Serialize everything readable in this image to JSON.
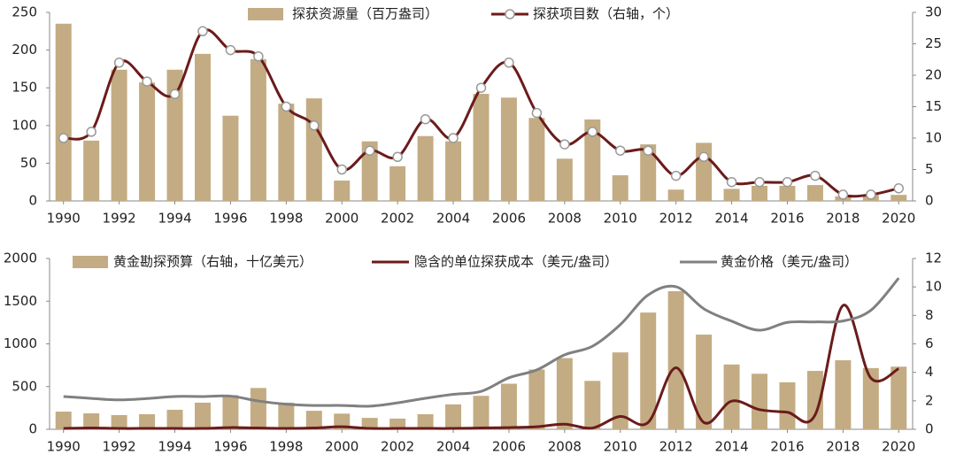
{
  "chart_data": [
    {
      "type": "combo",
      "x": [
        1990,
        1991,
        1992,
        1993,
        1994,
        1995,
        1996,
        1997,
        1998,
        1999,
        2000,
        2001,
        2002,
        2003,
        2004,
        2005,
        2006,
        2007,
        2008,
        2009,
        2010,
        2011,
        2012,
        2013,
        2014,
        2015,
        2016,
        2017,
        2018,
        2019,
        2020
      ],
      "xlim": [
        1989.5,
        2020.5
      ],
      "xticks": [
        1990,
        1992,
        1994,
        1996,
        1998,
        2000,
        2002,
        2004,
        2006,
        2008,
        2010,
        2012,
        2014,
        2016,
        2018,
        2020
      ],
      "ylim": [
        0,
        250
      ],
      "yticks": [
        0,
        50,
        100,
        150,
        200,
        250
      ],
      "y2lim": [
        0,
        30
      ],
      "y2ticks": [
        0,
        5,
        10,
        15,
        20,
        25,
        30
      ],
      "series": [
        {
          "name": "探获资源量（百万盎司）",
          "kind": "bar",
          "color": "#c3ac83",
          "values": [
            235,
            80,
            174,
            157,
            174,
            195,
            113,
            188,
            129,
            136,
            27,
            79,
            46,
            86,
            79,
            142,
            137,
            110,
            56,
            108,
            34,
            75,
            15,
            77,
            16,
            20,
            20,
            21,
            6,
            8,
            8
          ]
        },
        {
          "name": "探获项目数（右轴，个）",
          "kind": "line",
          "axis": "y2",
          "marker": true,
          "color": "#6b1b1b",
          "values": [
            10,
            11,
            22,
            19,
            17,
            27,
            24,
            23,
            15,
            12,
            5,
            8,
            7,
            13,
            10,
            18,
            22,
            14,
            9,
            11,
            8,
            8,
            4,
            7,
            3,
            3,
            3,
            4,
            1,
            1,
            2
          ]
        }
      ]
    },
    {
      "type": "combo",
      "x": [
        1990,
        1991,
        1992,
        1993,
        1994,
        1995,
        1996,
        1997,
        1998,
        1999,
        2000,
        2001,
        2002,
        2003,
        2004,
        2005,
        2006,
        2007,
        2008,
        2009,
        2010,
        2011,
        2012,
        2013,
        2014,
        2015,
        2016,
        2017,
        2018,
        2019,
        2020
      ],
      "xlim": [
        1989.5,
        2020.5
      ],
      "xticks": [
        1990,
        1992,
        1994,
        1996,
        1998,
        2000,
        2002,
        2004,
        2006,
        2008,
        2010,
        2012,
        2014,
        2016,
        2018,
        2020
      ],
      "ylim": [
        0,
        2000
      ],
      "yticks": [
        0,
        500,
        1000,
        1500,
        2000
      ],
      "y2lim": [
        0,
        12
      ],
      "y2ticks": [
        0,
        2,
        4,
        6,
        8,
        10,
        12
      ],
      "series": [
        {
          "name": "黄金勘探预算（右轴，十亿美元）",
          "kind": "bar",
          "axis": "y2",
          "color": "#c3ac83",
          "values": [
            1.24,
            1.12,
            1.0,
            1.06,
            1.37,
            1.87,
            2.4,
            2.9,
            1.87,
            1.3,
            1.1,
            0.8,
            0.75,
            1.06,
            1.75,
            2.35,
            3.2,
            4.2,
            5.0,
            3.4,
            5.4,
            8.2,
            9.7,
            6.65,
            4.55,
            3.9,
            3.3,
            4.1,
            4.85,
            4.3,
            4.4
          ]
        },
        {
          "name": "隐含的单位探获成本（美元/盎司）",
          "kind": "line",
          "color": "#6b1b1b",
          "values": [
            10,
            15,
            10,
            10,
            10,
            10,
            20,
            15,
            10,
            15,
            30,
            10,
            10,
            10,
            10,
            15,
            20,
            30,
            60,
            15,
            150,
            80,
            720,
            80,
            330,
            230,
            200,
            170,
            1450,
            600,
            710
          ]
        },
        {
          "name": "黄金价格（美元/盎司）",
          "kind": "line",
          "color": "#808080",
          "values": [
            384,
            362,
            344,
            360,
            384,
            384,
            388,
            331,
            294,
            279,
            279,
            271,
            310,
            363,
            409,
            444,
            603,
            695,
            872,
            972,
            1225,
            1572,
            1669,
            1411,
            1266,
            1160,
            1251,
            1257,
            1268,
            1393,
            1770
          ]
        }
      ]
    }
  ]
}
